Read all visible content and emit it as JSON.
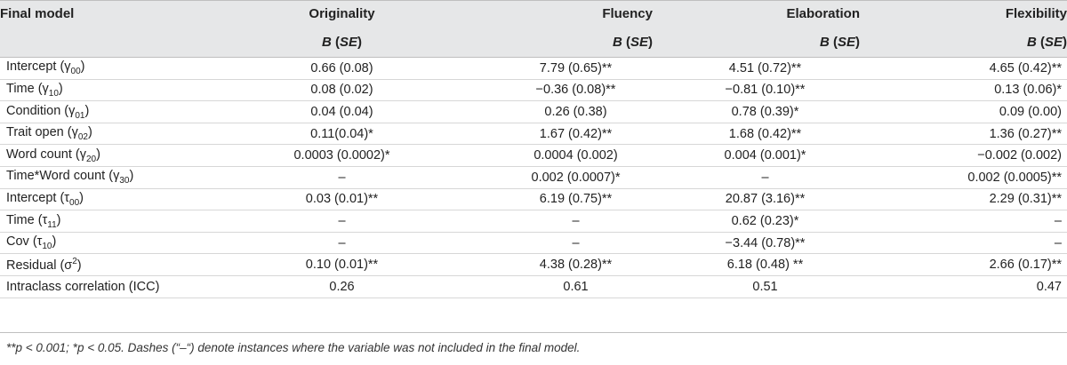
{
  "table": {
    "headers": {
      "row1": [
        "Final model",
        "Originality",
        "Fluency",
        "Elaboration",
        "Flexibility"
      ],
      "stat_b": "B",
      "stat_se": "SE"
    },
    "rows": [
      {
        "label": "Intercept (γ",
        "sub": "00",
        "sup": "",
        "tail": ")",
        "values": [
          "0.66 (0.08)",
          "7.79 (0.65)**",
          "4.51 (0.72)**",
          "4.65 (0.42)**"
        ]
      },
      {
        "label": "Time (γ",
        "sub": "10",
        "sup": "",
        "tail": ")",
        "values": [
          "0.08 (0.02)",
          "−0.36 (0.08)**",
          "−0.81 (0.10)**",
          "0.13 (0.06)*"
        ]
      },
      {
        "label": "Condition (γ",
        "sub": "01",
        "sup": "",
        "tail": ")",
        "values": [
          "0.04 (0.04)",
          "0.26 (0.38)",
          "0.78 (0.39)*",
          "0.09 (0.00)"
        ]
      },
      {
        "label": "Trait open (γ",
        "sub": "02",
        "sup": "",
        "tail": ")",
        "values": [
          "0.11(0.04)*",
          "1.67 (0.42)**",
          "1.68 (0.42)**",
          "1.36 (0.27)**"
        ]
      },
      {
        "label": "Word count (γ",
        "sub": "20",
        "sup": "",
        "tail": ")",
        "values": [
          "0.0003 (0.0002)*",
          "0.0004 (0.002)",
          "0.004 (0.001)*",
          "−0.002 (0.002)"
        ]
      },
      {
        "label": "Time*Word count (γ",
        "sub": "30",
        "sup": "",
        "tail": ")",
        "values": [
          "–",
          "0.002 (0.0007)*",
          "–",
          "0.002 (0.0005)**"
        ]
      },
      {
        "label": "Intercept (τ",
        "sub": "00",
        "sup": "",
        "tail": ")",
        "values": [
          "0.03 (0.01)**",
          "6.19 (0.75)**",
          "20.87 (3.16)**",
          "2.29 (0.31)**"
        ]
      },
      {
        "label": "Time (τ",
        "sub": "11",
        "sup": "",
        "tail": ")",
        "values": [
          "–",
          "–",
          "0.62 (0.23)*",
          "–"
        ]
      },
      {
        "label": "Cov (τ",
        "sub": "10",
        "sup": "",
        "tail": ")",
        "values": [
          "–",
          "–",
          "−3.44 (0.78)**",
          "–"
        ]
      },
      {
        "label": "Residual (σ",
        "sub": "",
        "sup": "2",
        "tail": ")",
        "values": [
          "0.10 (0.01)**",
          "4.38 (0.28)**",
          "6.18 (0.48) **",
          "2.66 (0.17)**"
        ]
      },
      {
        "label": "Intraclass correlation (ICC)",
        "sub": "",
        "sup": "",
        "tail": "",
        "values": [
          "0.26",
          "0.61",
          "0.51",
          "0.47"
        ]
      }
    ]
  },
  "footnote": "**p < 0.001; *p < 0.05. Dashes (“–“) denote instances where the variable was not included in the final model."
}
